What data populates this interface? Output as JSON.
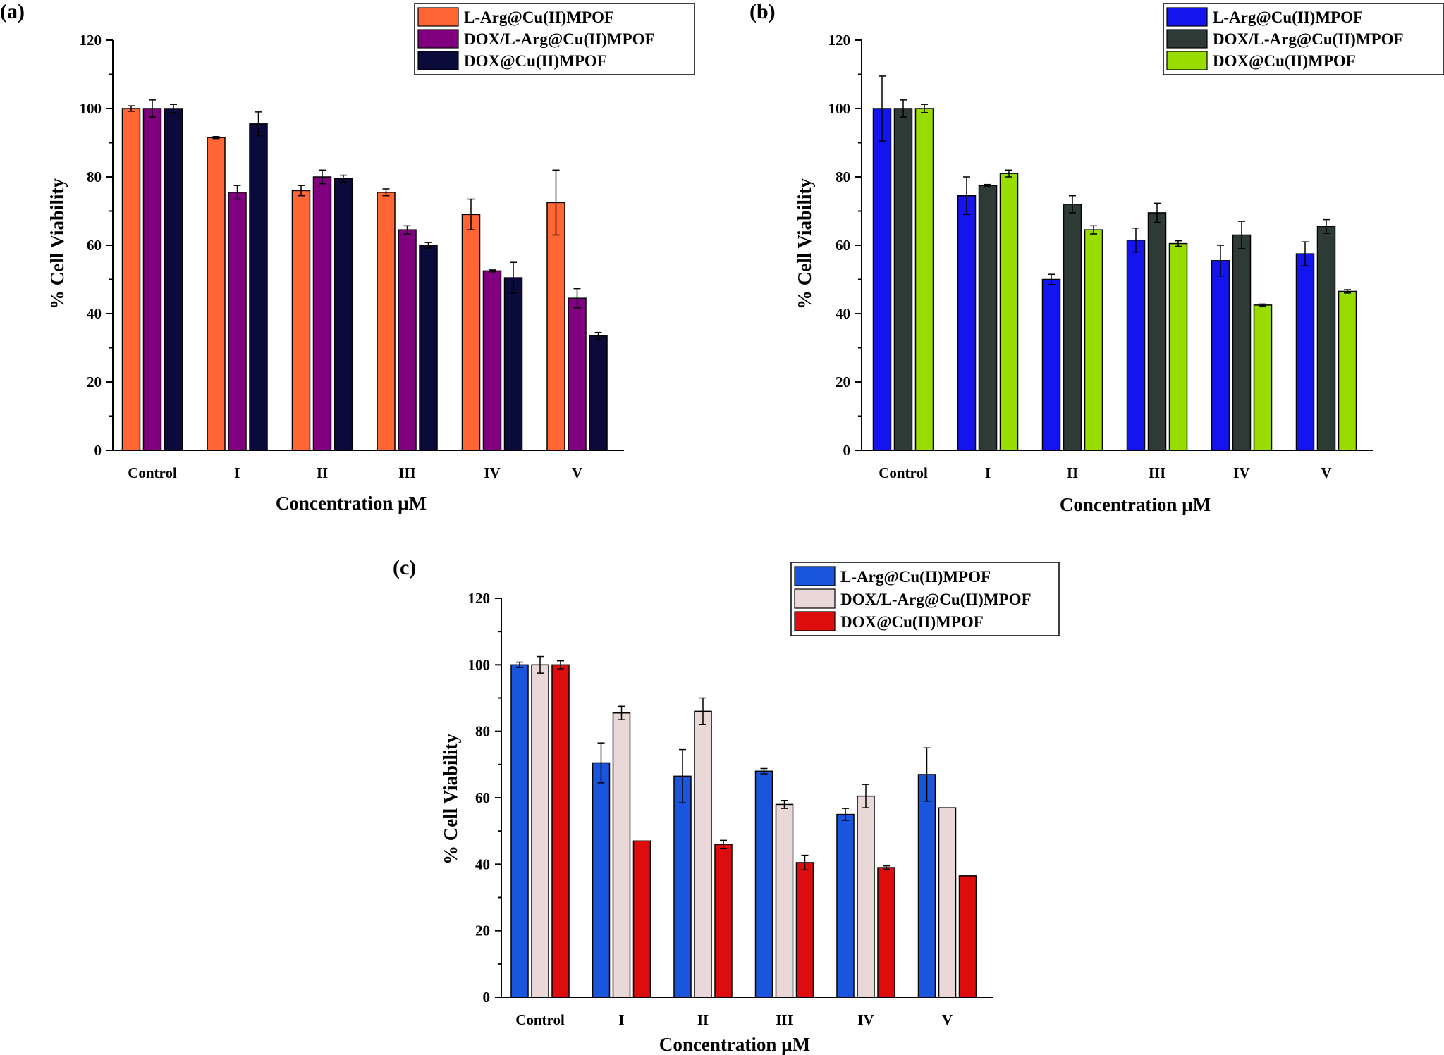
{
  "chart_data": [
    {
      "panel_label": "(a)",
      "type": "bar",
      "categories": [
        "Control",
        "I",
        "II",
        "III",
        "IV",
        "V"
      ],
      "xlabel": "Concentration µM",
      "ylabel": "% Cell Viability",
      "ylim": [
        0,
        120
      ],
      "yticks": [
        0,
        20,
        40,
        60,
        80,
        100,
        120
      ],
      "grid": false,
      "legend_position": "top-right",
      "series": [
        {
          "name": "L-Arg@Cu(II)MPOF",
          "color": "#ff6633",
          "values": [
            100,
            91.5,
            76,
            75.5,
            69,
            72.5
          ],
          "errors": [
            0.8,
            0.3,
            1.5,
            1.0,
            4.5,
            9.5
          ]
        },
        {
          "name": "DOX/L-Arg@Cu(II)MPOF",
          "color": "#800080",
          "values": [
            100,
            75.5,
            80,
            64.5,
            52.5,
            44.5
          ],
          "errors": [
            2.5,
            2.0,
            2.0,
            1.2,
            0.3,
            2.8
          ]
        },
        {
          "name": "DOX@Cu(II)MPOF",
          "color": "#0b0b3b",
          "values": [
            100,
            95.5,
            79.5,
            60,
            50.5,
            33.5
          ],
          "errors": [
            1.2,
            3.5,
            1.0,
            0.8,
            4.5,
            1.0
          ]
        }
      ]
    },
    {
      "panel_label": "(b)",
      "type": "bar",
      "categories": [
        "Control",
        "I",
        "II",
        "III",
        "IV",
        "V"
      ],
      "xlabel": "Concentration µM",
      "ylabel": "% Cell Viability",
      "ylim": [
        0,
        120
      ],
      "yticks": [
        0,
        20,
        40,
        60,
        80,
        100,
        120
      ],
      "grid": false,
      "legend_position": "top-right",
      "series": [
        {
          "name": "L-Arg@Cu(II)MPOF",
          "color": "#1414ee",
          "values": [
            100,
            74.5,
            50,
            61.5,
            55.5,
            57.5
          ],
          "errors": [
            9.5,
            5.5,
            1.5,
            3.5,
            4.5,
            3.5
          ]
        },
        {
          "name": "DOX/L-Arg@Cu(II)MPOF",
          "color": "#2e3a36",
          "values": [
            100,
            77.5,
            72,
            69.5,
            63,
            65.5
          ],
          "errors": [
            2.5,
            0.3,
            2.5,
            2.8,
            4.0,
            2.0
          ]
        },
        {
          "name": "DOX@Cu(II)MPOF",
          "color": "#99dd00",
          "values": [
            100,
            81,
            64.5,
            60.5,
            42.5,
            46.5
          ],
          "errors": [
            1.2,
            1.0,
            1.2,
            0.8,
            0.3,
            0.5
          ]
        }
      ]
    },
    {
      "panel_label": "(c)",
      "type": "bar",
      "categories": [
        "Control",
        "I",
        "II",
        "III",
        "IV",
        "V"
      ],
      "xlabel": "Concentration µM",
      "ylabel": "% Cell Viability",
      "ylim": [
        0,
        120
      ],
      "yticks": [
        0,
        20,
        40,
        60,
        80,
        100,
        120
      ],
      "grid": false,
      "legend_position": "top-right",
      "series": [
        {
          "name": "L-Arg@Cu(II)MPOF",
          "color": "#1a56dd",
          "values": [
            100,
            70.5,
            66.5,
            68,
            55,
            67
          ],
          "errors": [
            0.8,
            6.0,
            8.0,
            0.8,
            1.8,
            8.0
          ]
        },
        {
          "name": "DOX/L-Arg@Cu(II)MPOF",
          "color": "#ead8d8",
          "values": [
            100,
            85.5,
            86,
            58,
            60.5,
            57
          ],
          "errors": [
            2.5,
            2.0,
            4.0,
            1.2,
            3.5,
            0
          ]
        },
        {
          "name": "DOX@Cu(II)MPOF",
          "color": "#dd0d0d",
          "values": [
            100,
            47,
            46,
            40.5,
            39,
            36.5
          ],
          "errors": [
            1.2,
            0,
            1.2,
            2.2,
            0.5,
            0
          ]
        }
      ]
    }
  ]
}
